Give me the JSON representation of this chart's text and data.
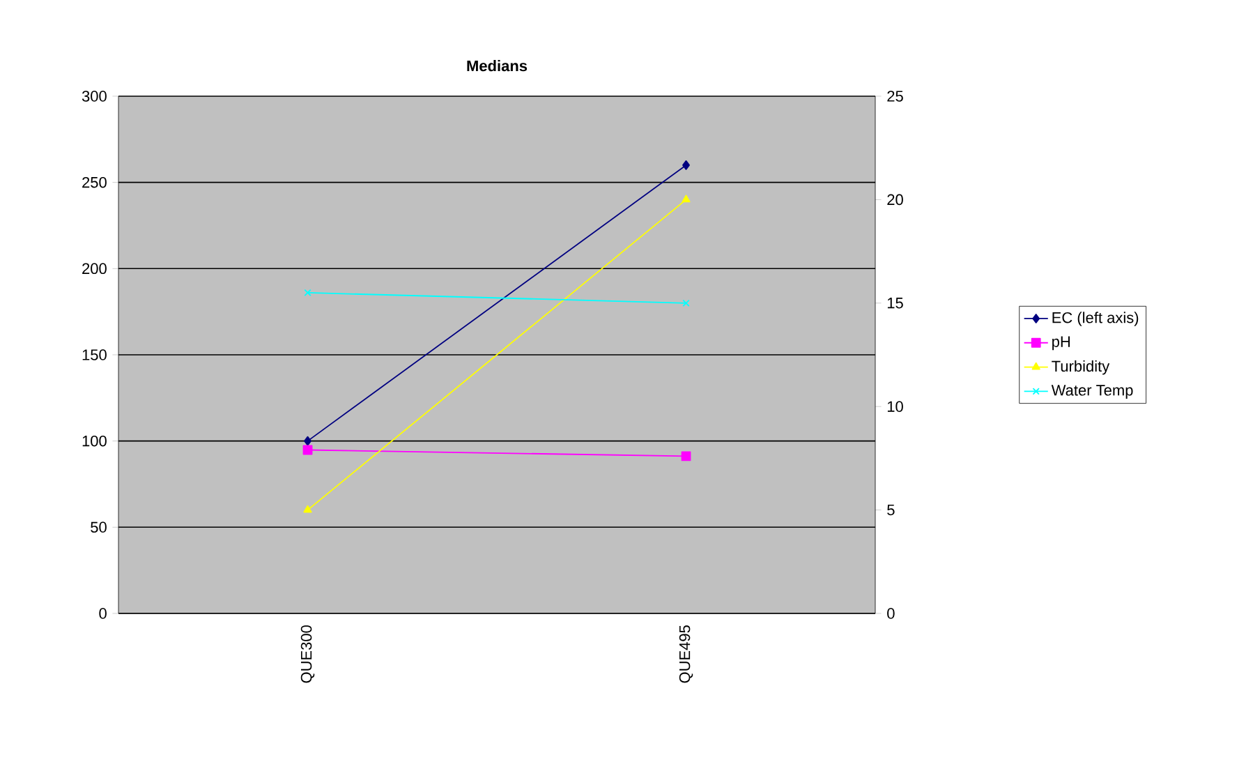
{
  "chart_data": {
    "type": "line",
    "title": "Medians",
    "categories": [
      "QUE300",
      "QUE495"
    ],
    "series": [
      {
        "name": "EC (left axis)",
        "color": "#000080",
        "marker": "diamond",
        "values": [
          100,
          260
        ]
      },
      {
        "name": "pH",
        "color": "#ff00ff",
        "marker": "square",
        "axis": "y2",
        "values": [
          7.9,
          7.6
        ]
      },
      {
        "name": "Turbidity",
        "color": "#ffff00",
        "marker": "triangle",
        "axis": "y2",
        "values": [
          5,
          20
        ]
      },
      {
        "name": "Water Temp",
        "color": "#00ffff",
        "marker": "cross",
        "axis": "y2",
        "values": [
          15.5,
          15
        ]
      }
    ],
    "ylim": [
      0,
      300
    ],
    "yticks": [
      0,
      50,
      100,
      150,
      200,
      250,
      300
    ],
    "y2lim": [
      0,
      25
    ],
    "y2ticks": [
      0,
      5,
      10,
      15,
      20,
      25
    ],
    "grid": "y",
    "legend": "right",
    "line_style": "solid"
  }
}
